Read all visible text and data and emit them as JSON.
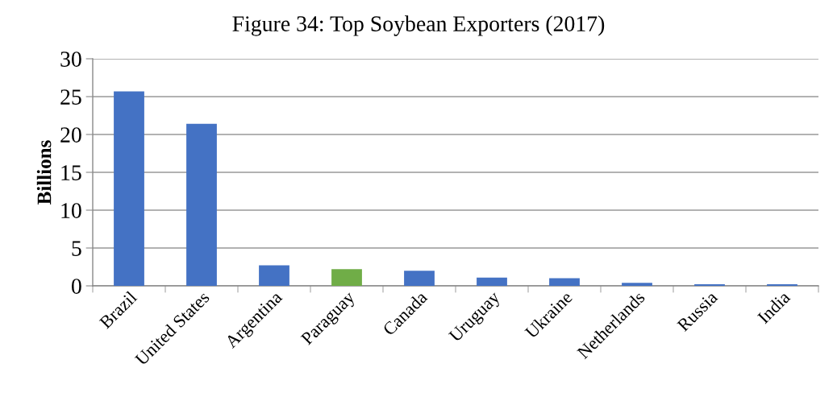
{
  "chart_data": {
    "type": "bar",
    "title": "Figure 34: Top Soybean Exporters (2017)",
    "ylabel": "Billions",
    "categories": [
      "Brazil",
      "United States",
      "Argentina",
      "Paraguay",
      "Canada",
      "Uruguay",
      "Ukraine",
      "Netherlands",
      "Russia",
      "India"
    ],
    "values": [
      25.7,
      21.4,
      2.7,
      2.2,
      2.0,
      1.1,
      1.0,
      0.4,
      0.2,
      0.2
    ],
    "colors": [
      "#4472c4",
      "#4472c4",
      "#4472c4",
      "#70ad47",
      "#4472c4",
      "#4472c4",
      "#4472c4",
      "#4472c4",
      "#4472c4",
      "#4472c4"
    ],
    "ylim": [
      0,
      30
    ],
    "yticks": [
      0,
      5,
      10,
      15,
      20,
      25,
      30
    ],
    "grid": "y",
    "legend": false
  }
}
